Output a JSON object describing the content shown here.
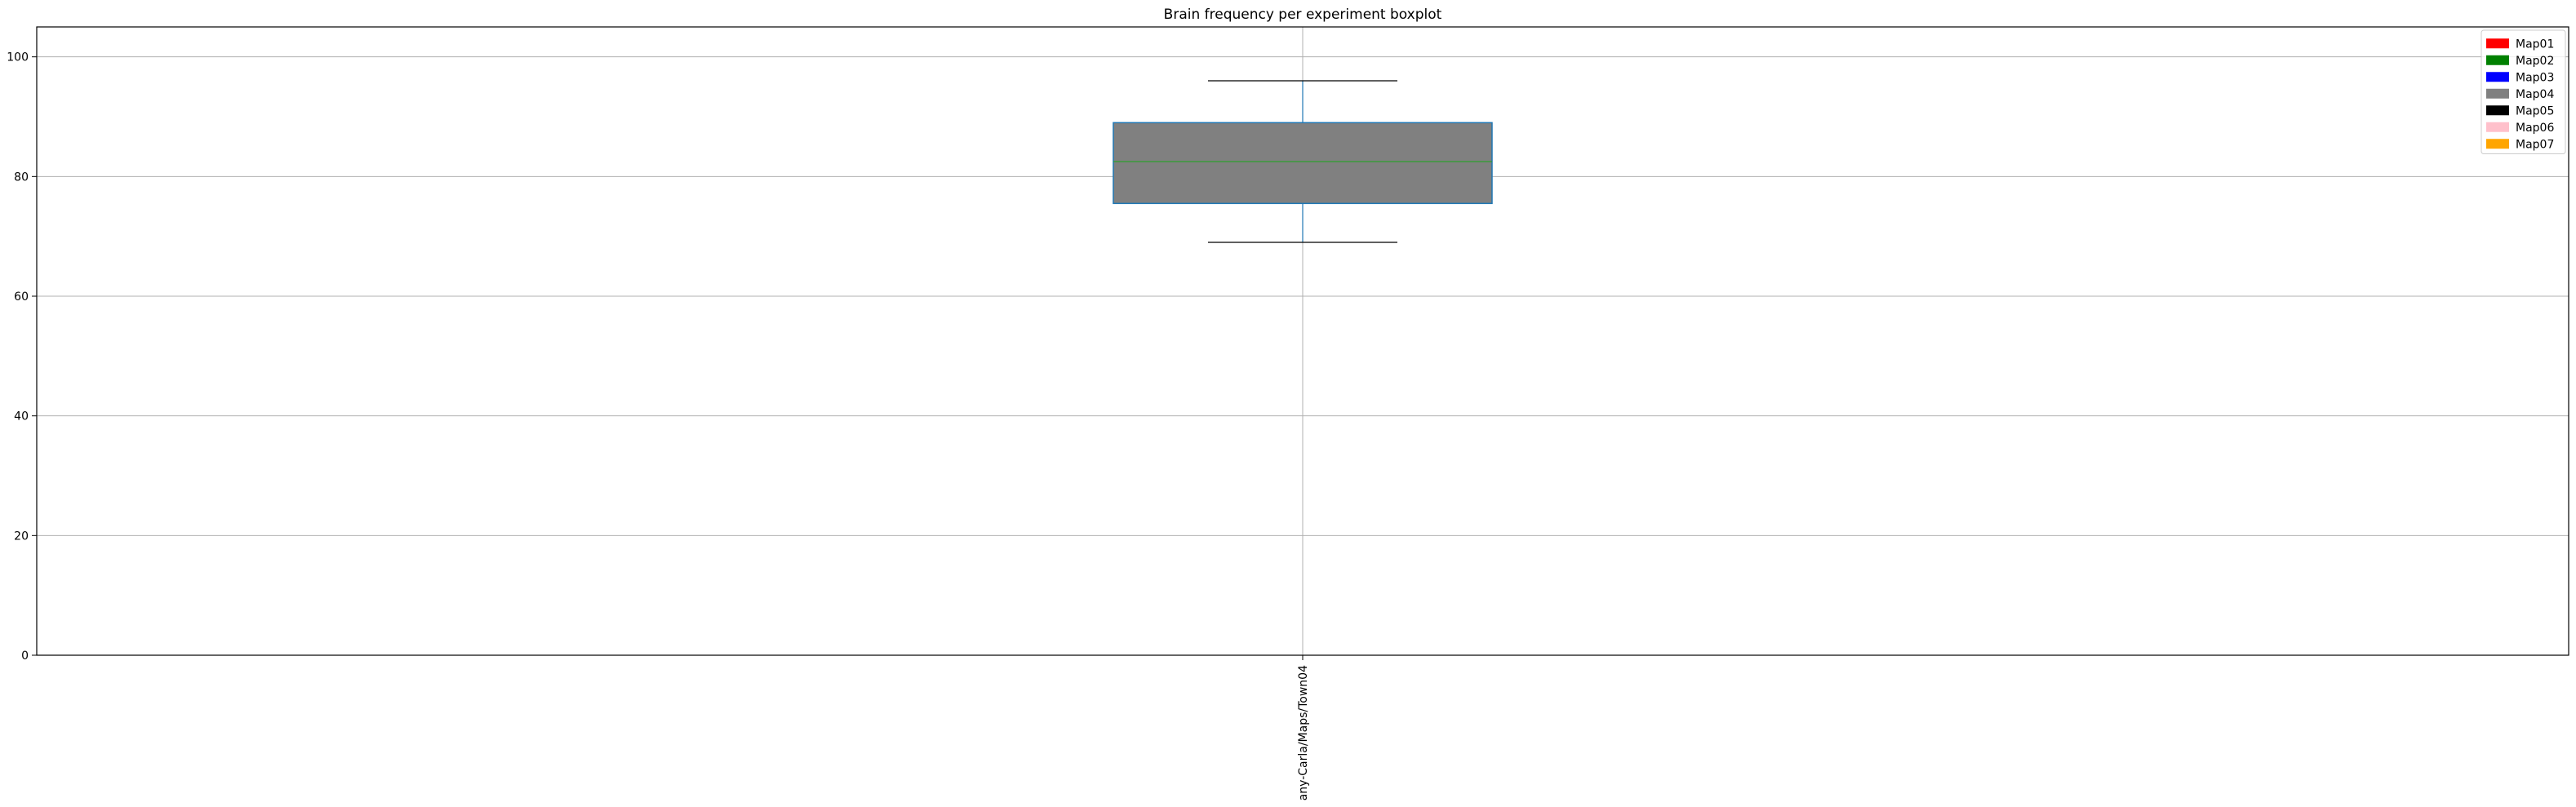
{
  "chart_data": {
    "type": "boxplot",
    "title": "Brain frequency per experiment boxplot",
    "xlabel": "",
    "ylabel": "",
    "ylim": [
      0,
      105
    ],
    "y_ticks": [
      0,
      20,
      40,
      60,
      80,
      100
    ],
    "grid": true,
    "legend_position": "top-right",
    "categories": [
      "any-Carla/Maps/Town04"
    ],
    "boxes": [
      {
        "category": "any-Carla/Maps/Town04",
        "whisker_low": 69,
        "q1": 75.5,
        "median": 82.5,
        "q3": 89,
        "whisker_high": 96,
        "fill_color": "#808080"
      }
    ],
    "legend": [
      {
        "label": "Map01",
        "color": "#ff0000"
      },
      {
        "label": "Map02",
        "color": "#008000"
      },
      {
        "label": "Map03",
        "color": "#0000ff"
      },
      {
        "label": "Map04",
        "color": "#808080"
      },
      {
        "label": "Map05",
        "color": "#000000"
      },
      {
        "label": "Map06",
        "color": "#ffc0cb"
      },
      {
        "label": "Map07",
        "color": "#ffa500"
      }
    ],
    "colors": {
      "box_edge": "#1f77b4",
      "median_line": "#2ca02c",
      "whisker": "#1f77b4",
      "cap": "#000000",
      "grid": "#b0b0b0"
    }
  }
}
